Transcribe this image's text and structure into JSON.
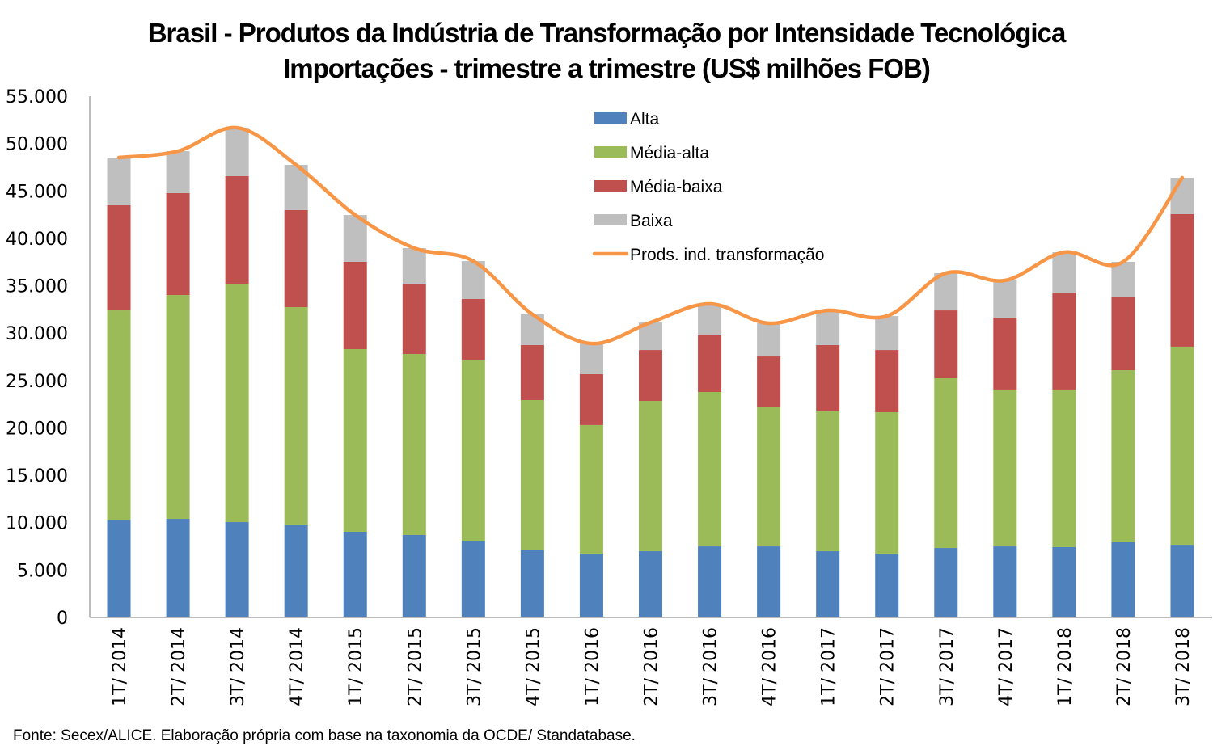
{
  "chart_data": {
    "type": "bar",
    "stacked": true,
    "title": "Brasil - Produtos da Indústria de Transformação por Intensidade Tecnológica",
    "subtitle": "Importações - trimestre a trimestre (US$ milhões FOB)",
    "xlabel": "",
    "ylabel": "",
    "ylim": [
      0,
      55000
    ],
    "yticks": [
      0,
      5000,
      10000,
      15000,
      20000,
      25000,
      30000,
      35000,
      40000,
      45000,
      50000,
      55000
    ],
    "ytick_labels": [
      "0",
      "5.000",
      "10.000",
      "15.000",
      "20.000",
      "25.000",
      "30.000",
      "35.000",
      "40.000",
      "45.000",
      "50.000",
      "55.000"
    ],
    "grid": false,
    "legend_position": "top-center",
    "categories": [
      "1T/ 2014",
      "2T/ 2014",
      "3T/ 2014",
      "4T/ 2014",
      "1T/ 2015",
      "2T/ 2015",
      "3T/ 2015",
      "4T/ 2015",
      "1T/ 2016",
      "2T/ 2016",
      "3T/ 2016",
      "4T/ 2016",
      "1T/ 2017",
      "2T/ 2017",
      "3T/ 2017",
      "4T/ 2017",
      "1T/ 2018",
      "2T/ 2018",
      "3T/ 2018"
    ],
    "series": [
      {
        "name": "Alta",
        "type": "bar",
        "color": "#4F81BD",
        "values": [
          10300,
          10400,
          10060,
          9810,
          9040,
          8700,
          8100,
          7080,
          6740,
          6990,
          7500,
          7500,
          6990,
          6740,
          7330,
          7500,
          7420,
          7930,
          7670
        ]
      },
      {
        "name": "Média-alta",
        "type": "bar",
        "color": "#9BBB59",
        "values": [
          22100,
          23620,
          25160,
          22930,
          19270,
          19100,
          19020,
          15860,
          13560,
          15860,
          16290,
          14670,
          14750,
          14920,
          17910,
          16550,
          16630,
          18160,
          20900
        ]
      },
      {
        "name": "Média-baixa",
        "type": "bar",
        "color": "#C0504D",
        "values": [
          11090,
          10750,
          11340,
          10240,
          9210,
          7420,
          6480,
          5800,
          5370,
          5370,
          5970,
          5370,
          7000,
          6560,
          7160,
          7590,
          10230,
          7680,
          13980
        ]
      },
      {
        "name": "Baixa",
        "type": "bar",
        "color": "#BFBFBF",
        "values": [
          5030,
          4430,
          5110,
          4770,
          4940,
          3750,
          4000,
          3240,
          3230,
          2900,
          3330,
          3500,
          3660,
          3580,
          3930,
          3920,
          4260,
          3750,
          3840
        ]
      },
      {
        "name": "Prods. ind. transformação",
        "type": "line",
        "smooth": true,
        "color": "#F79646",
        "values": [
          48520,
          49200,
          51670,
          47750,
          42460,
          38970,
          37600,
          31980,
          28900,
          31120,
          33090,
          31040,
          32400,
          31800,
          36330,
          35560,
          38540,
          37520,
          46390
        ]
      }
    ]
  },
  "footer": "Fonte: Secex/ALICE. Elaboração própria com base na taxonomia da OCDE/ Standatabase."
}
